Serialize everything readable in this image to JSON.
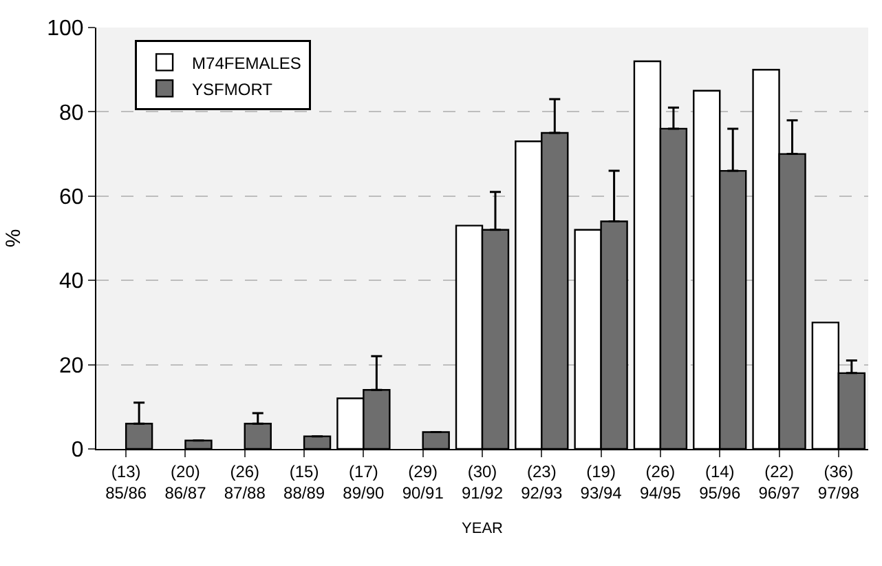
{
  "chart_data": {
    "type": "bar",
    "xlabel": "YEAR",
    "ylabel": "%",
    "categories": [
      "(13)\n85/86",
      "(20)\n86/87",
      "(26)\n87/88",
      "(15)\n88/89",
      "(17)\n89/90",
      "(29)\n90/91",
      "(30)\n91/92",
      "(23)\n92/93",
      "(19)\n93/94",
      "(26)\n94/95",
      "(14)\n95/96",
      "(22)\n96/97",
      "(36)\n97/98"
    ],
    "series": [
      {
        "name": "M74FEMALES",
        "color": "#ffffff",
        "values": [
          null,
          null,
          null,
          null,
          12,
          null,
          53,
          73,
          52,
          92,
          85,
          90,
          30
        ]
      },
      {
        "name": "YSFMORT",
        "color": "#6e6e6e",
        "values": [
          6,
          2,
          6,
          3,
          14,
          4,
          52,
          75,
          54,
          76,
          66,
          70,
          18
        ],
        "errors": [
          [
            6,
            11
          ],
          null,
          [
            6,
            8.5
          ],
          null,
          [
            14,
            22
          ],
          null,
          [
            52,
            61
          ],
          [
            75,
            83
          ],
          [
            54,
            66
          ],
          [
            76,
            81
          ],
          [
            66,
            76
          ],
          [
            70,
            78
          ],
          [
            18,
            21
          ]
        ]
      }
    ],
    "ylim": [
      0,
      100
    ],
    "yticks": [
      0,
      20,
      40,
      60,
      80,
      100
    ],
    "grid": "y",
    "legend": "top left"
  }
}
